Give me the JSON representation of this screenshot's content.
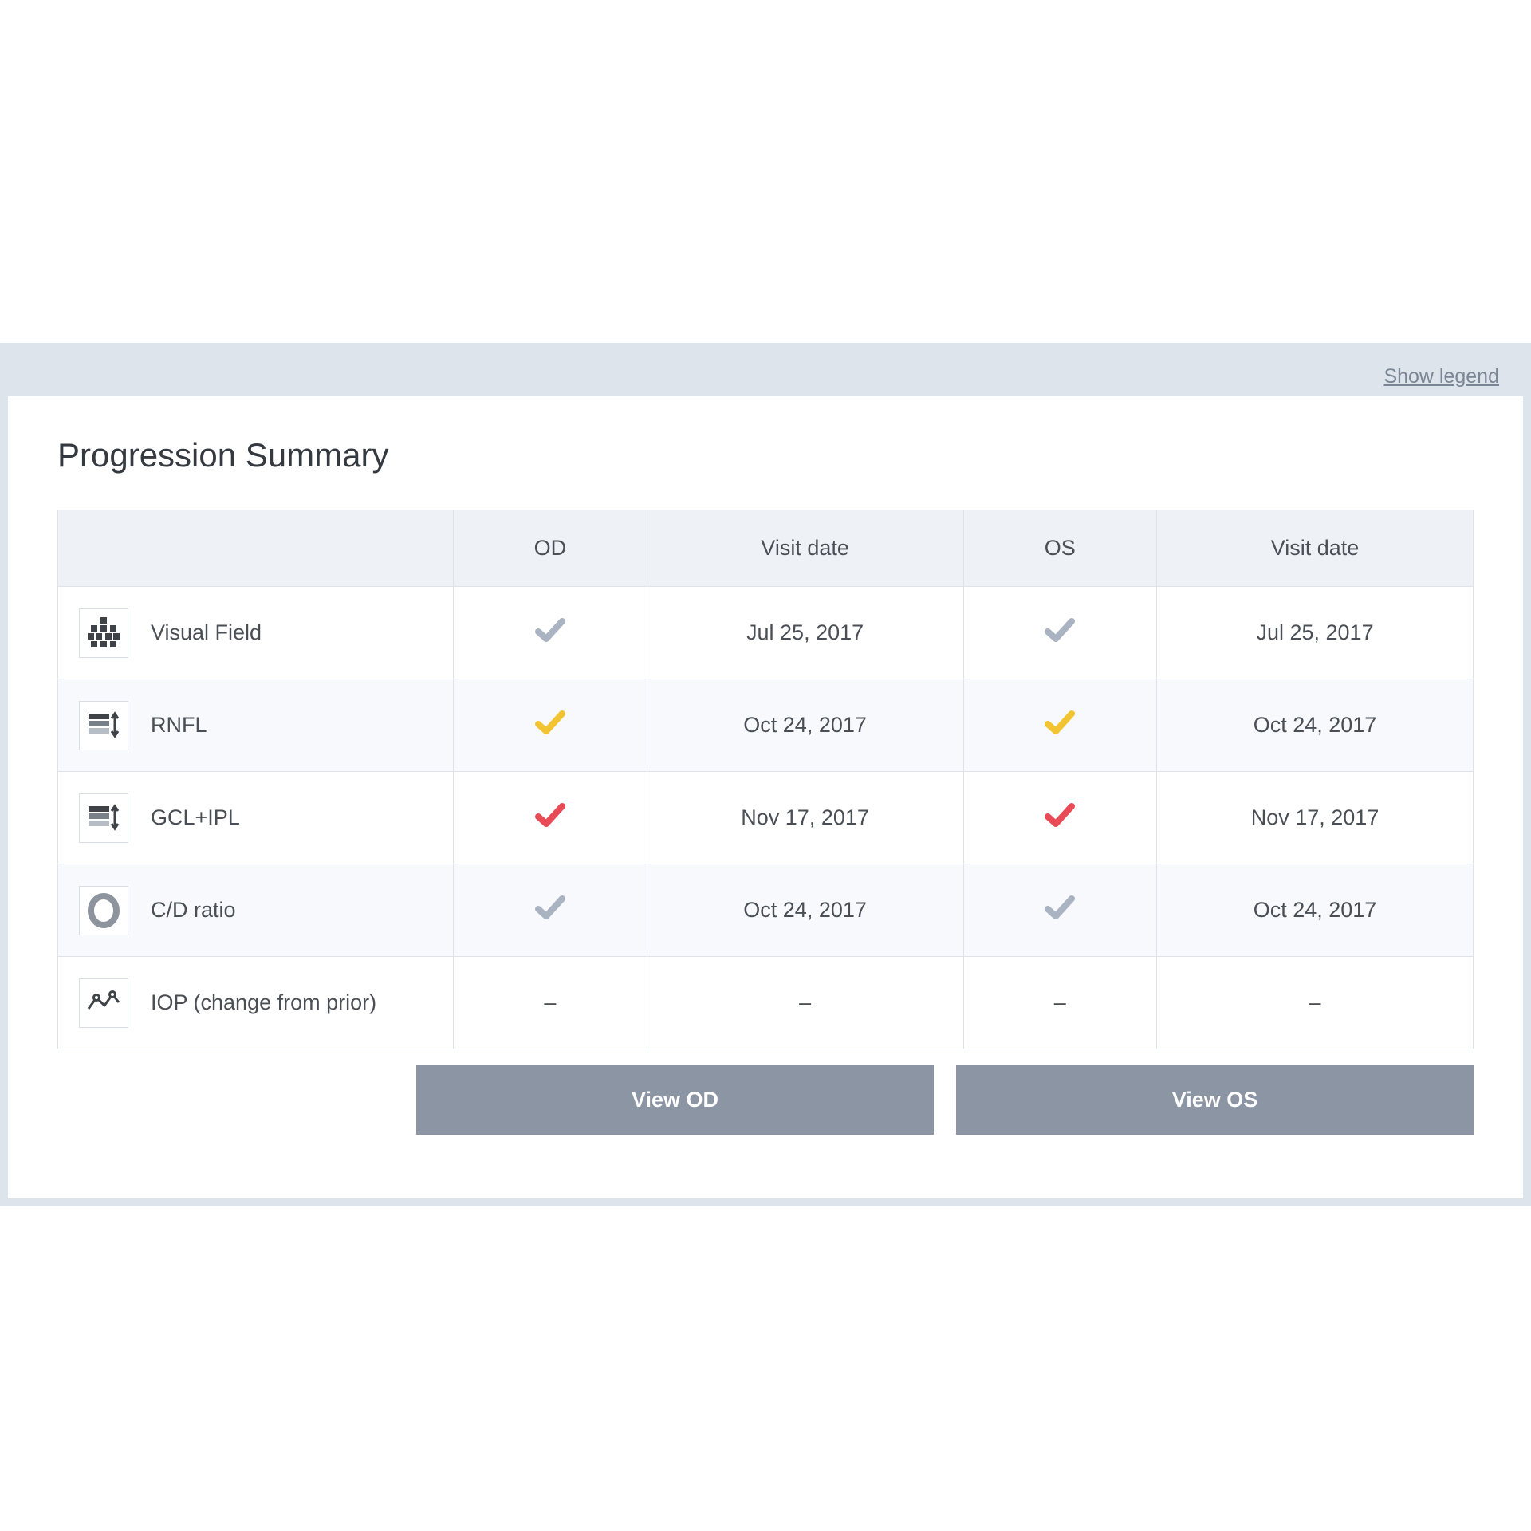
{
  "header": {
    "show_legend": "Show legend"
  },
  "panel": {
    "title": "Progression Summary"
  },
  "columns": {
    "c0": "",
    "c1": "OD",
    "c2": "Visit date",
    "c3": "OS",
    "c4": "Visit date"
  },
  "rows": [
    {
      "icon": "vf",
      "label": "Visual Field",
      "od_status": "ok_gray",
      "od_date": "Jul 25, 2017",
      "os_status": "ok_gray",
      "os_date": "Jul 25, 2017",
      "alt": false
    },
    {
      "icon": "rnfl",
      "label": "RNFL",
      "od_status": "warn_yellow",
      "od_date": "Oct 24, 2017",
      "os_status": "warn_yellow",
      "os_date": "Oct 24, 2017",
      "alt": true
    },
    {
      "icon": "gcl",
      "label": "GCL+IPL",
      "od_status": "bad_red",
      "od_date": "Nov 17, 2017",
      "os_status": "bad_red",
      "os_date": "Nov 17, 2017",
      "alt": false
    },
    {
      "icon": "cd",
      "label": "C/D ratio",
      "od_status": "ok_gray",
      "od_date": "Oct 24, 2017",
      "os_status": "ok_gray",
      "os_date": "Oct 24, 2017",
      "alt": true
    },
    {
      "icon": "iop",
      "label": "IOP (change from prior)",
      "od_status": "none",
      "od_date": "–",
      "os_status": "none",
      "os_date": "–",
      "alt": false
    }
  ],
  "buttons": {
    "view_od": "View OD",
    "view_os": "View OS"
  },
  "status_colors": {
    "ok_gray": "#aab3c2",
    "warn_yellow": "#f2c431",
    "bad_red": "#e84b55",
    "none": "#4a4f55"
  },
  "style": {
    "outer_bg": "#dee4ec",
    "panel_bg": "#ffffff",
    "header_row_bg": "#eef2f7",
    "alt_row_bg": "#f7f9fc",
    "border": "#dfe3e9",
    "btn_bg": "#8b95a3",
    "btn_fg": "#ffffff",
    "title_fontsize": 42,
    "cell_fontsize": 27
  }
}
